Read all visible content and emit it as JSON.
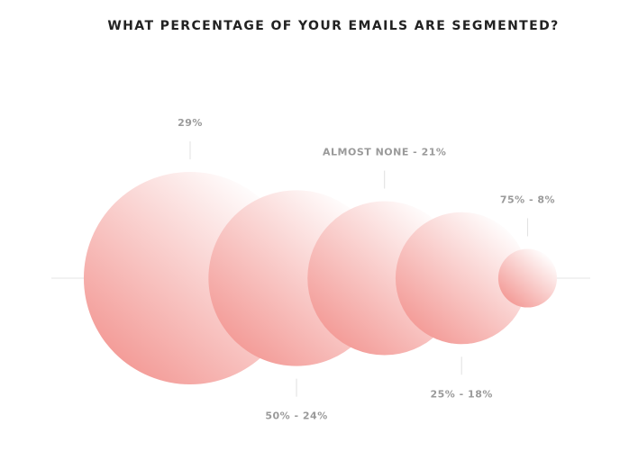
{
  "chart_data": {
    "type": "bubble",
    "title": "WHAT PERCENTAGE OF YOUR EMAILS ARE SEGMENTED?",
    "values": [
      29,
      24,
      21,
      18,
      8
    ],
    "value_labels": [
      "29%",
      "50% - 24%",
      "ALMOST NONE - 21%",
      "25% - 18%",
      "75% - 8%"
    ],
    "color": "#f39a96"
  }
}
